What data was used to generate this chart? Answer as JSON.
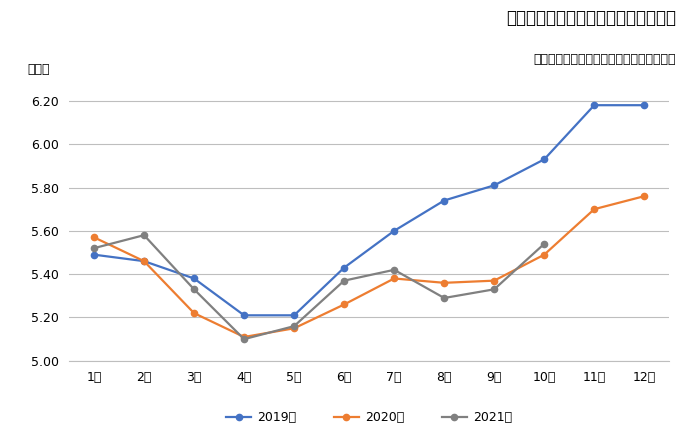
{
  "title": "建設技能工の有効求人倍率の月別推移",
  "subtitle": "厚生労働省「一般職業紹介状況」より作成",
  "ylabel": "（倍）",
  "months": [
    "1月",
    "2月",
    "3月",
    "4月",
    "5月",
    "6月",
    "7月",
    "8月",
    "9月",
    "10月",
    "11月",
    "12月"
  ],
  "series": [
    {
      "label": "2019年",
      "color": "#4472C4",
      "marker": "o",
      "values": [
        5.49,
        5.46,
        5.38,
        5.21,
        5.21,
        5.43,
        5.6,
        5.74,
        5.81,
        5.93,
        6.18,
        6.18
      ]
    },
    {
      "label": "2020年",
      "color": "#ED7D31",
      "marker": "o",
      "values": [
        5.57,
        5.46,
        5.22,
        5.11,
        5.15,
        5.26,
        5.38,
        5.36,
        5.37,
        5.49,
        5.7,
        5.76
      ]
    },
    {
      "label": "2021年",
      "color": "#808080",
      "marker": "o",
      "values": [
        5.52,
        5.58,
        5.33,
        5.1,
        5.16,
        5.37,
        5.42,
        5.29,
        5.33,
        5.54,
        null,
        null
      ]
    }
  ],
  "ylim": [
    5.0,
    6.3
  ],
  "yticks": [
    5.0,
    5.2,
    5.4,
    5.6,
    5.8,
    6.0,
    6.2
  ],
  "background_color": "#FFFFFF",
  "grid_color": "#BEBEBE",
  "title_fontsize": 12,
  "subtitle_fontsize": 9,
  "legend_fontsize": 9,
  "axis_fontsize": 9,
  "ylabel_fontsize": 9
}
